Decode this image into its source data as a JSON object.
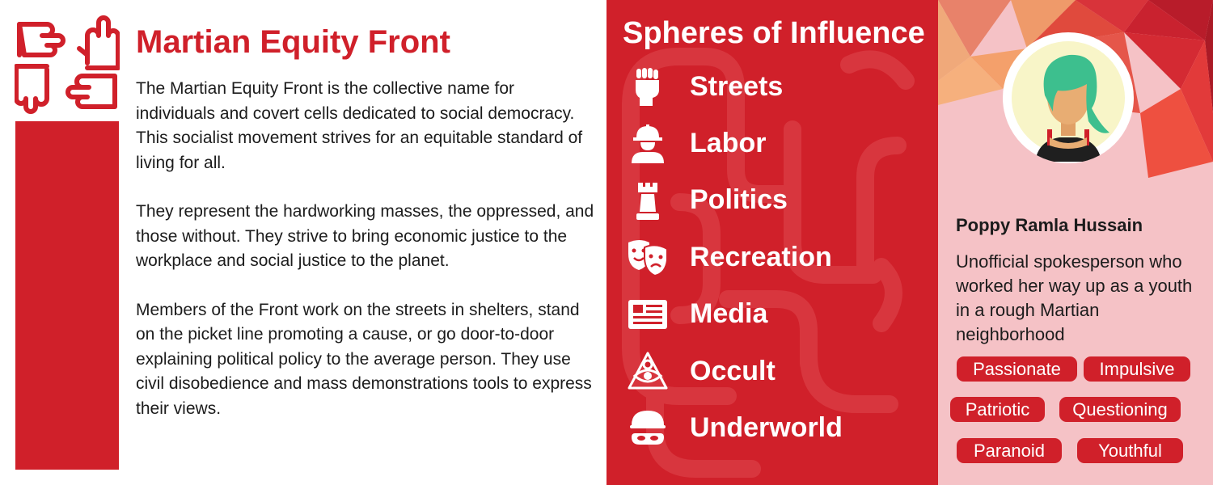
{
  "colors": {
    "brand_red": "#d0202a",
    "pink_panel": "#f5c2c6",
    "text_dark": "#1c1c1c"
  },
  "faction": {
    "logo_icon": "four-hands-icon",
    "title": "Martian Equity Front",
    "paragraphs": [
      "The Martian Equity Front is the collective name for individuals and covert cells dedicated to social democracy. This socialist movement strives for an equitable standard of living for all.",
      "They represent the hardworking masses, the oppressed, and those without. They strive to bring economic justice to the workplace and social justice to the planet.",
      "Members of the Front work on the streets in shelters, stand on the picket line promoting a cause, or go door-to-door explaining political policy to the average person. They use civil disobedience and mass demonstrations tools to express their views."
    ]
  },
  "spheres": {
    "title": "Spheres of Influence",
    "items": [
      {
        "label": "Streets",
        "icon": "raised-fist-icon"
      },
      {
        "label": "Labor",
        "icon": "hardhat-worker-icon"
      },
      {
        "label": "Politics",
        "icon": "chess-rook-icon"
      },
      {
        "label": "Recreation",
        "icon": "theater-masks-icon"
      },
      {
        "label": "Media",
        "icon": "newspaper-icon"
      },
      {
        "label": "Occult",
        "icon": "eye-pyramid-icon"
      },
      {
        "label": "Underworld",
        "icon": "masked-bandit-icon"
      }
    ]
  },
  "contact": {
    "avatar_icon": "woman-teal-hair-avatar",
    "name": "Poppy Ramla Hussain",
    "bio": "Unofficial spokesperson who worked her way up as a youth in a rough Martian neighborhood",
    "tags": [
      "Passionate",
      "Impulsive",
      "Patriotic",
      "Questioning",
      "Paranoid",
      "Youthful"
    ]
  }
}
